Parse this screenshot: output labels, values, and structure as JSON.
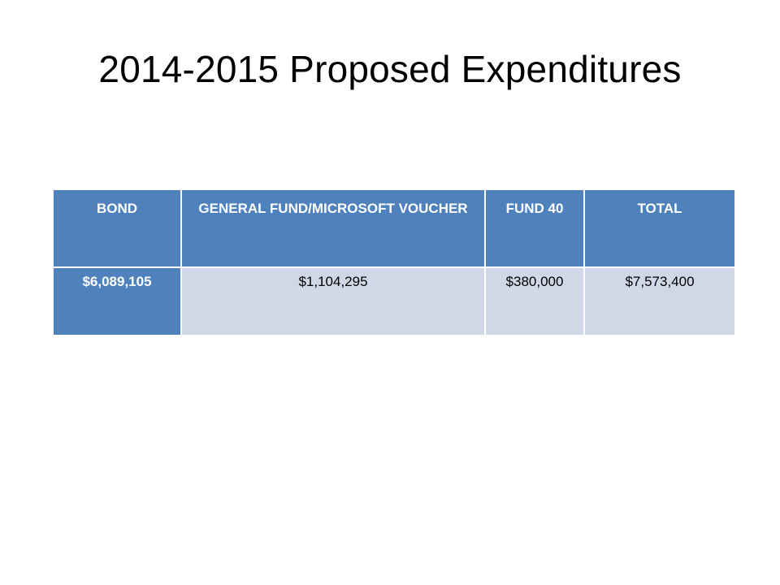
{
  "slide": {
    "title": "2014-2015 Proposed Expenditures"
  },
  "table": {
    "headers": [
      "BOND",
      "GENERAL FUND/MICROSOFT VOUCHER",
      "FUND 40",
      "TOTAL"
    ],
    "rows": [
      [
        "$6,089,105",
        "$1,104,295",
        "$380,000",
        "$7,573,400"
      ]
    ]
  },
  "colors": {
    "header_fill": "#4f81bd",
    "body_fill": "#d0d8e8",
    "header_text": "#ffffff"
  }
}
